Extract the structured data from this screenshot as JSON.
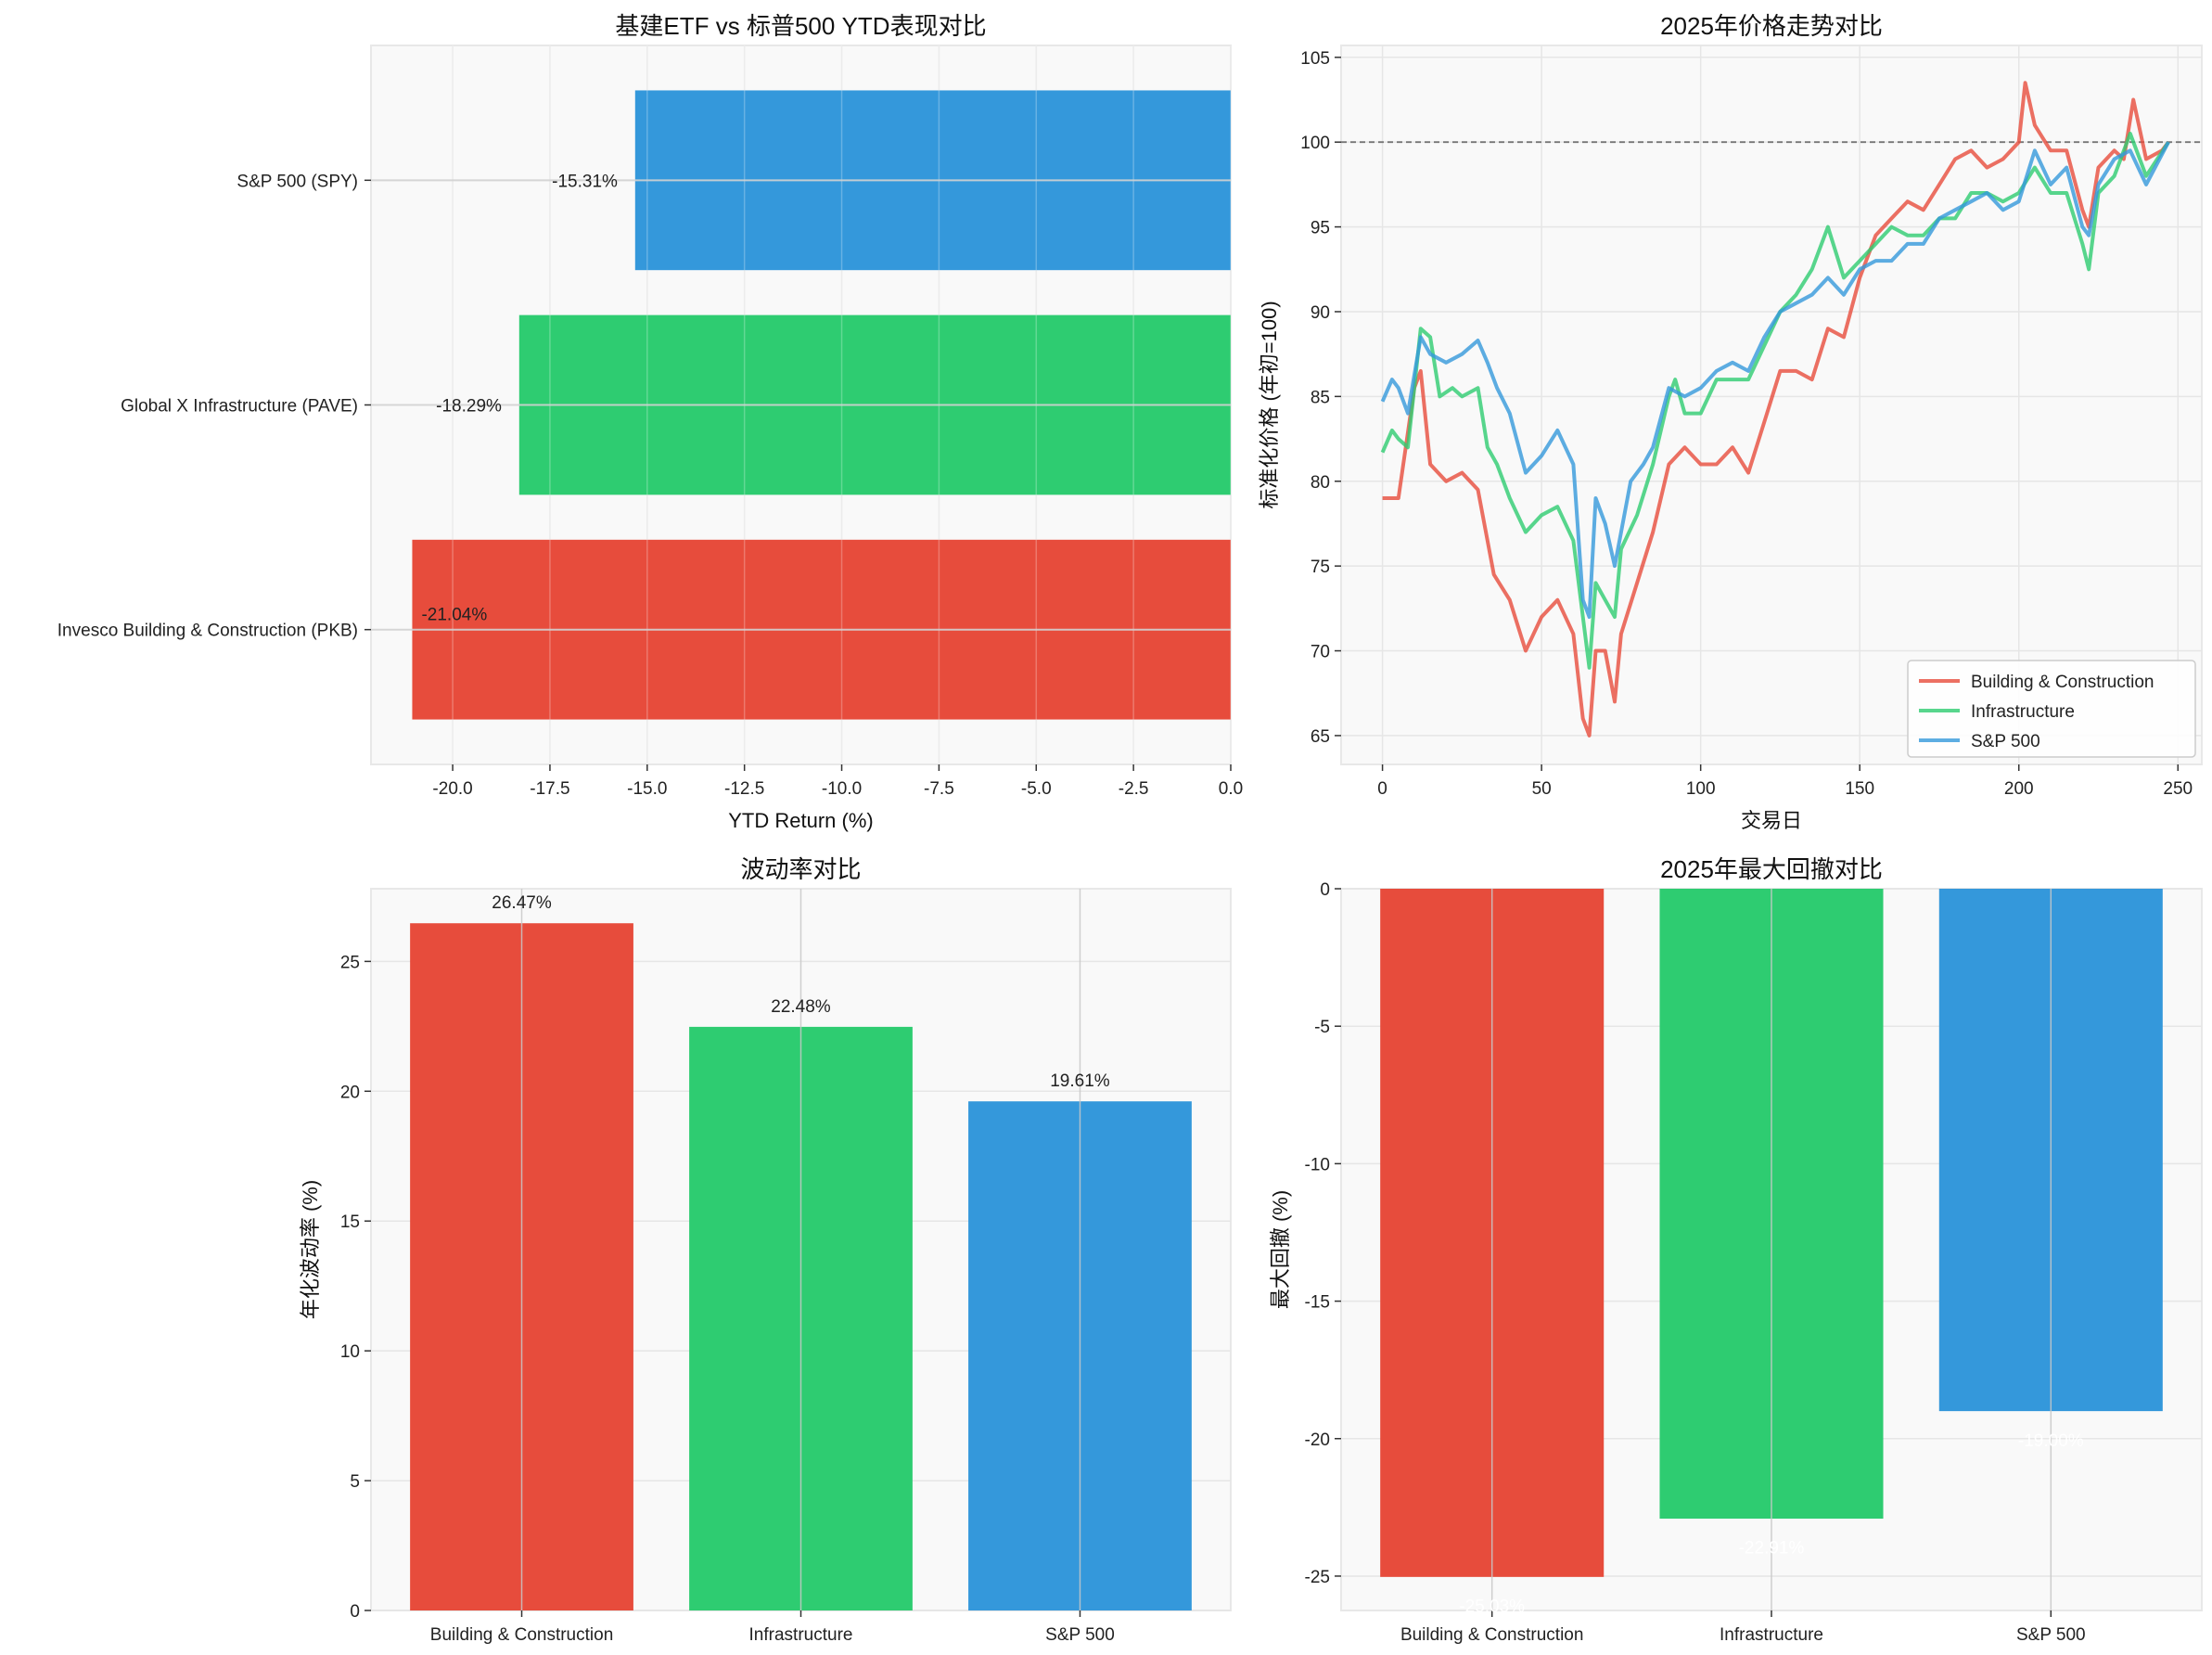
{
  "colors": {
    "building": "#e74c3c",
    "infrastructure": "#2ecc71",
    "sp500": "#3498db",
    "axes_bg": "#f9f9f9",
    "grid": "#e6e6e6"
  },
  "chart_data": [
    {
      "type": "bar",
      "orientation": "horizontal",
      "title": "基建ETF vs 标普500 YTD表现对比",
      "xlabel": "YTD Return (%)",
      "ylabel": "",
      "categories": [
        "Invesco Building & Construction (PKB)",
        "Global X Infrastructure (PAVE)",
        "S&P 500 (SPY)"
      ],
      "values": [
        -21.04,
        -18.29,
        -15.31
      ],
      "data_labels": [
        "-21.04%",
        "-18.29%",
        "-15.31%"
      ],
      "colors": [
        "#e74c3c",
        "#2ecc71",
        "#3498db"
      ],
      "xlim": [
        -22.1,
        0
      ],
      "xticks": [
        -20,
        -17.5,
        -15,
        -12.5,
        -10,
        -7.5,
        -5,
        -2.5,
        0
      ],
      "xtick_labels": [
        "-20.0",
        "-17.5",
        "-15.0",
        "-12.5",
        "-10.0",
        "-7.5",
        "-5.0",
        "-2.5",
        "0.0"
      ],
      "grid": true
    },
    {
      "type": "line",
      "title": "2025年价格走势对比",
      "xlabel": "交易日",
      "ylabel": "标准化价格 (年初=100)",
      "xlim": [
        -13,
        257.5
      ],
      "ylim": [
        63.3,
        105.7
      ],
      "xticks": [
        0,
        50,
        100,
        150,
        200,
        250
      ],
      "xtick_labels": [
        "0",
        "50",
        "100",
        "150",
        "200",
        "250"
      ],
      "yticks": [
        65,
        70,
        75,
        80,
        85,
        90,
        95,
        100,
        105
      ],
      "ytick_labels": [
        "65",
        "70",
        "75",
        "80",
        "85",
        "90",
        "95",
        "100",
        "105"
      ],
      "reference_line": 100,
      "legend_position": "lower-right",
      "grid": true,
      "series": [
        {
          "name": "Building & Construction",
          "color": "#e74c3c",
          "x": [
            0,
            5,
            10,
            12,
            15,
            20,
            25,
            30,
            35,
            40,
            45,
            50,
            55,
            60,
            63,
            65,
            67,
            70,
            73,
            75,
            80,
            85,
            90,
            95,
            100,
            105,
            110,
            115,
            120,
            125,
            130,
            135,
            140,
            145,
            150,
            155,
            160,
            165,
            170,
            175,
            180,
            185,
            190,
            195,
            200,
            202,
            205,
            210,
            215,
            220,
            222,
            225,
            230,
            233,
            236,
            240,
            245,
            247
          ],
          "y": [
            79,
            79,
            85.5,
            86.5,
            81,
            80,
            80.5,
            79.5,
            74.5,
            73,
            70,
            72,
            73,
            71,
            66,
            65,
            70,
            70,
            67,
            71,
            74,
            77,
            81,
            82,
            81,
            81,
            82,
            80.5,
            83.5,
            86.5,
            86.5,
            86,
            89,
            88.5,
            92,
            94.5,
            95.5,
            96.5,
            96,
            97.5,
            99,
            99.5,
            98.5,
            99,
            100,
            103.5,
            101,
            99.5,
            99.5,
            96,
            95,
            98.5,
            99.5,
            99,
            102.5,
            99,
            99.5,
            100
          ]
        },
        {
          "name": "Infrastructure",
          "color": "#2ecc71",
          "x": [
            0,
            3,
            5,
            8,
            12,
            15,
            18,
            22,
            25,
            30,
            33,
            36,
            40,
            45,
            50,
            55,
            60,
            63,
            65,
            67,
            70,
            73,
            75,
            80,
            85,
            90,
            92,
            95,
            100,
            105,
            110,
            115,
            120,
            125,
            130,
            135,
            140,
            145,
            150,
            155,
            160,
            165,
            170,
            175,
            180,
            185,
            190,
            195,
            200,
            205,
            210,
            215,
            220,
            222,
            225,
            230,
            235,
            240,
            247
          ],
          "y": [
            81.7,
            83,
            82.5,
            82,
            89,
            88.5,
            85,
            85.5,
            85,
            85.5,
            82,
            81,
            79,
            77,
            78,
            78.5,
            76.5,
            72,
            69,
            74,
            73,
            72,
            76,
            78,
            81,
            85,
            86,
            84,
            84,
            86,
            86,
            86,
            88,
            90,
            91,
            92.5,
            95,
            92,
            93,
            94,
            95,
            94.5,
            94.5,
            95.5,
            95.5,
            97,
            97,
            96.5,
            97,
            98.5,
            97,
            97,
            94,
            92.5,
            97,
            98,
            100.5,
            98,
            100
          ]
        },
        {
          "name": "S&P 500",
          "color": "#3498db",
          "x": [
            0,
            3,
            5,
            8,
            12,
            15,
            20,
            25,
            30,
            33,
            36,
            40,
            45,
            50,
            55,
            60,
            63,
            65,
            67,
            70,
            73,
            75,
            78,
            82,
            85,
            90,
            95,
            100,
            105,
            110,
            115,
            120,
            125,
            130,
            135,
            140,
            145,
            150,
            155,
            160,
            165,
            170,
            175,
            180,
            185,
            190,
            195,
            200,
            205,
            210,
            215,
            220,
            222,
            225,
            230,
            235,
            240,
            247
          ],
          "y": [
            84.7,
            86,
            85.5,
            84,
            88.5,
            87.5,
            87,
            87.5,
            88.3,
            87,
            85.5,
            84,
            80.5,
            81.5,
            83,
            81,
            73,
            72,
            79,
            77.5,
            75,
            77,
            80,
            81,
            82,
            85.5,
            85,
            85.5,
            86.5,
            87,
            86.5,
            88.5,
            90,
            90.5,
            91,
            92,
            91,
            92.5,
            93,
            93,
            94,
            94,
            95.5,
            96,
            96.5,
            97,
            96,
            96.5,
            99.5,
            97.5,
            98.5,
            95,
            94.5,
            97.5,
            99,
            99.5,
            97.5,
            100
          ]
        }
      ]
    },
    {
      "type": "bar",
      "title": "波动率对比",
      "xlabel": "",
      "ylabel": "年化波动率 (%)",
      "categories": [
        "Building & Construction",
        "Infrastructure",
        "S&P 500"
      ],
      "values": [
        26.47,
        22.48,
        19.61
      ],
      "data_labels": [
        "26.47%",
        "22.48%",
        "19.61%"
      ],
      "colors": [
        "#e74c3c",
        "#2ecc71",
        "#3498db"
      ],
      "ylim": [
        0,
        27.8
      ],
      "yticks": [
        0,
        5,
        10,
        15,
        20,
        25
      ],
      "ytick_labels": [
        "0",
        "5",
        "10",
        "15",
        "20",
        "25"
      ],
      "grid": true
    },
    {
      "type": "bar",
      "title": "2025年最大回撤对比",
      "xlabel": "",
      "ylabel": "最大回撤 (%)",
      "categories": [
        "Building & Construction",
        "Infrastructure",
        "S&P 500"
      ],
      "values": [
        -25.03,
        -22.91,
        -19.0
      ],
      "data_labels": [
        "-25.03%",
        "-22.91%",
        "-19.00%"
      ],
      "data_label_color": "#ffffff",
      "colors": [
        "#e74c3c",
        "#2ecc71",
        "#3498db"
      ],
      "ylim": [
        -26.25,
        0
      ],
      "yticks": [
        0,
        -5,
        -10,
        -15,
        -20,
        -25
      ],
      "ytick_labels": [
        "0",
        "-5",
        "-10",
        "-15",
        "-20",
        "-25"
      ],
      "grid": true
    }
  ]
}
